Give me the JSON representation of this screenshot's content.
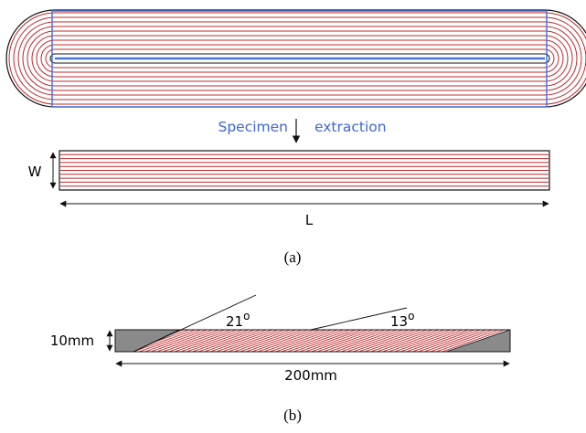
{
  "figure_a": {
    "extraction_label_left": "Specimen",
    "extraction_label_right": "extraction",
    "width_label": "W",
    "length_label": "L",
    "caption": "(a)"
  },
  "figure_b": {
    "angle1": "21",
    "angle2": "13",
    "degree_symbol": "o",
    "height_label": "10mm",
    "length_label": "200mm",
    "caption": "(b)"
  },
  "colors": {
    "fiber": "#c0282a",
    "outline": "#111111",
    "box": "#4a74e0",
    "gray": "#8a8a8a",
    "label_blue": "#3f66d6"
  }
}
